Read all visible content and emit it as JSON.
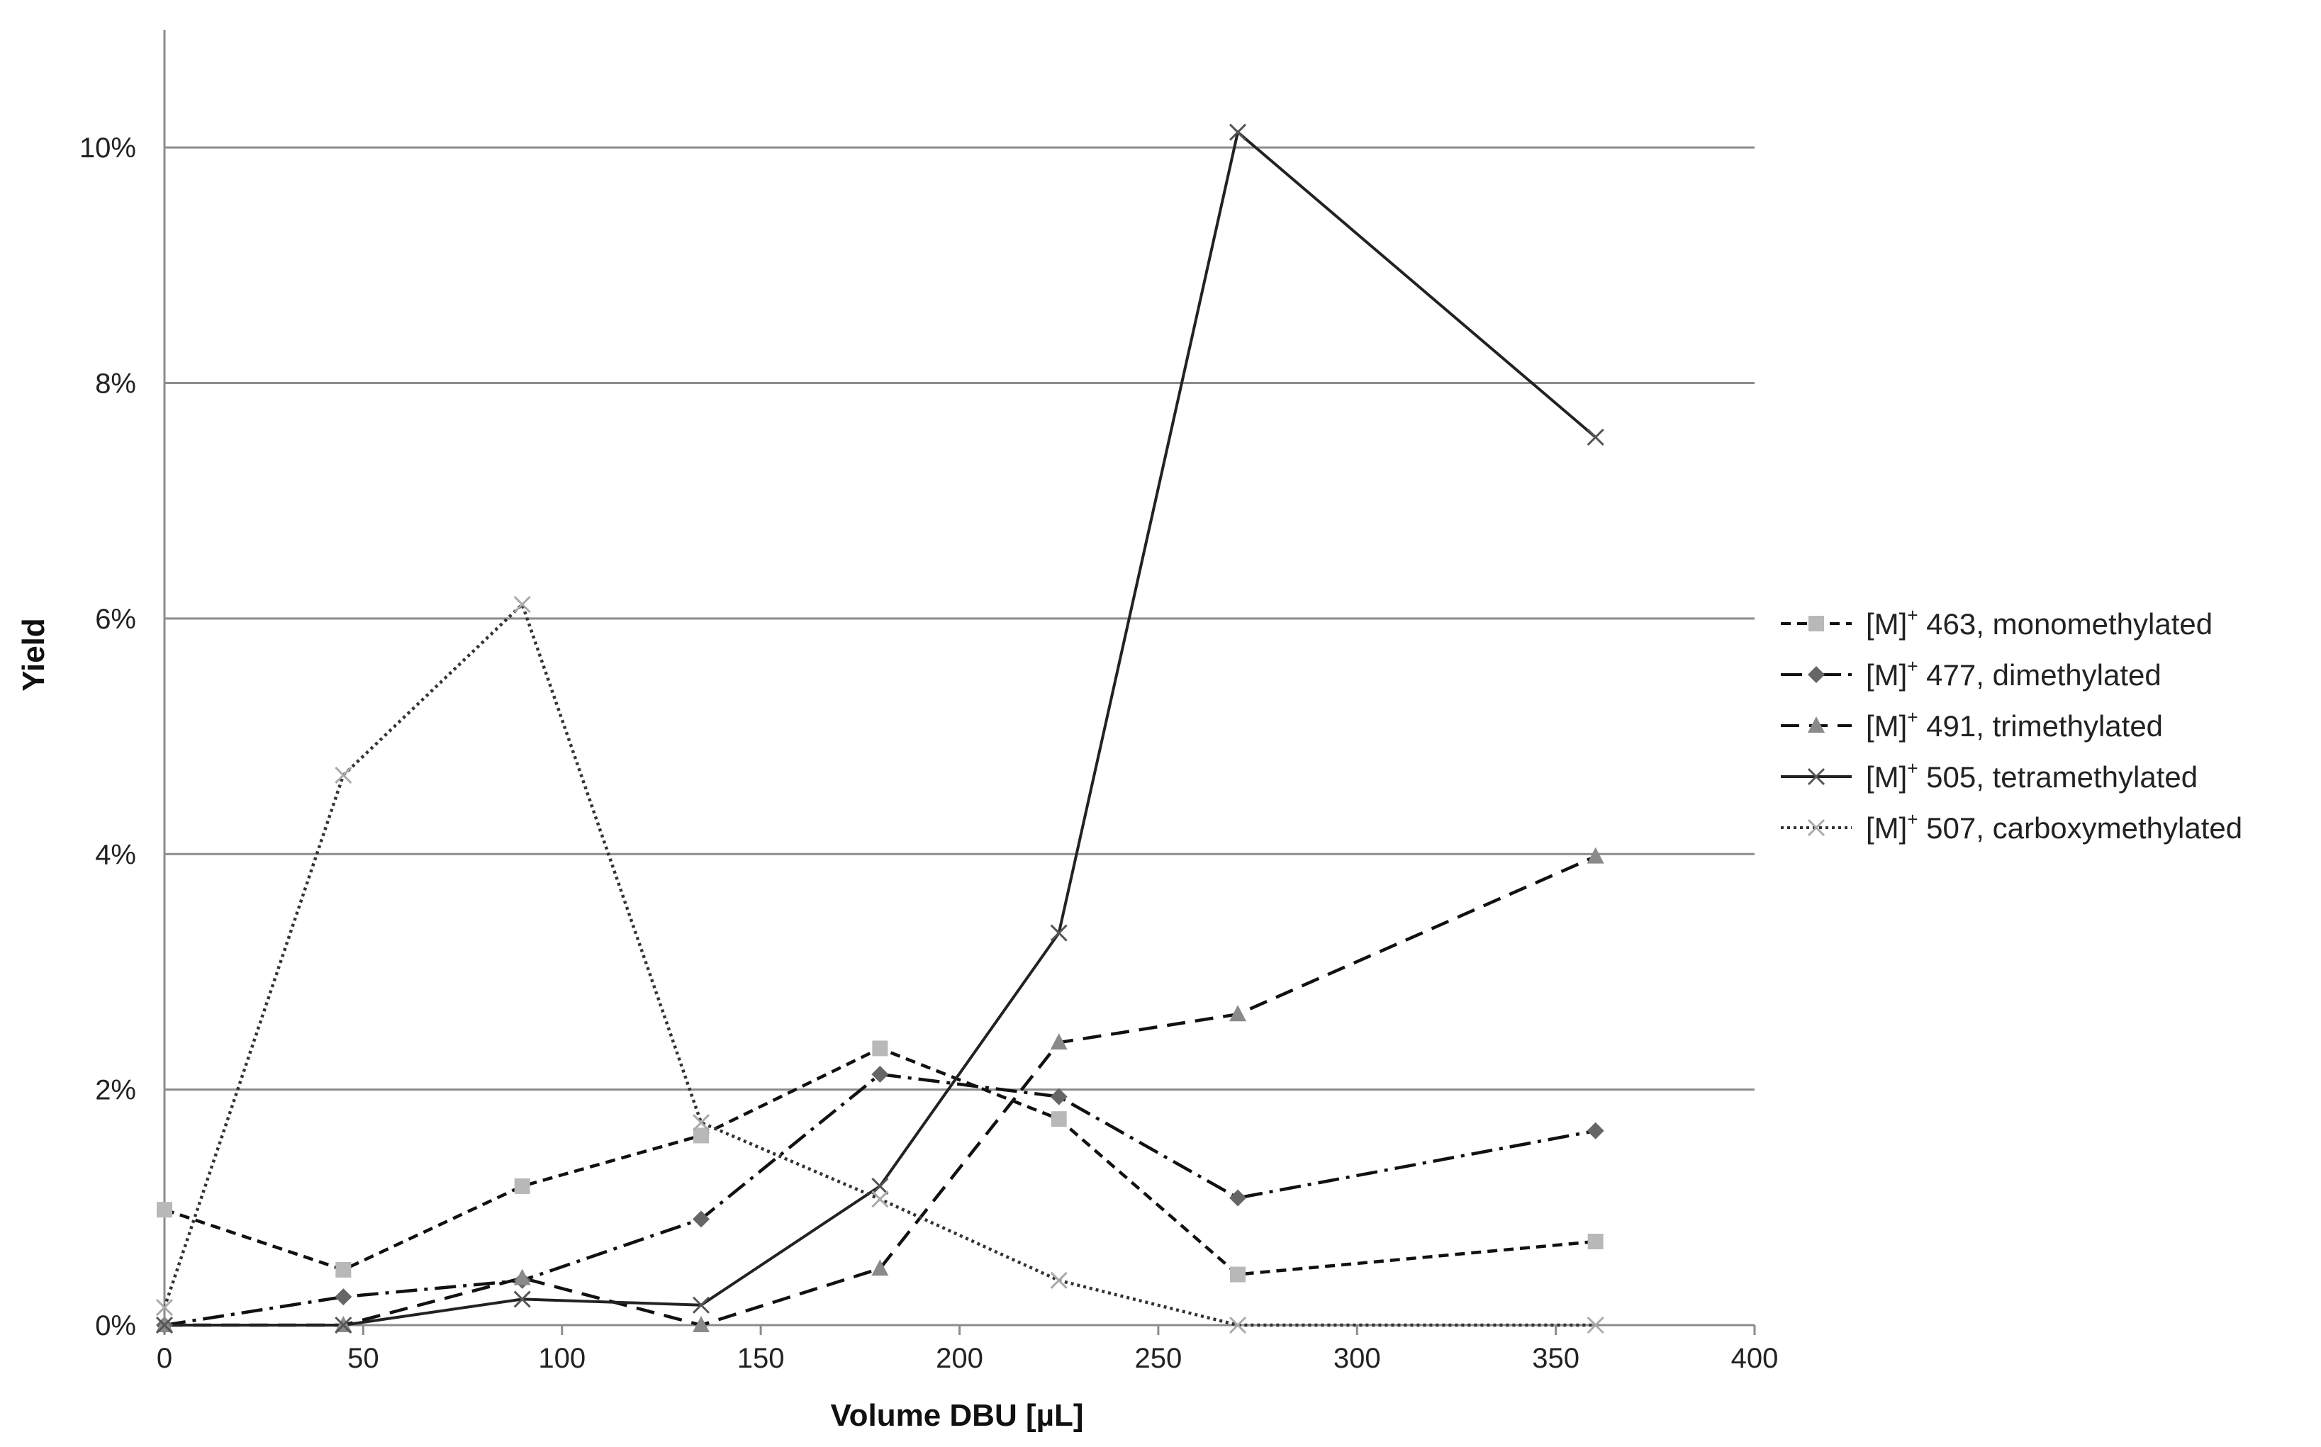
{
  "chart_data": {
    "type": "line",
    "title": "",
    "xlabel": "Volume DBU [µL]",
    "ylabel": "Yield",
    "xlim": [
      0,
      400
    ],
    "ylim": [
      0,
      0.11
    ],
    "x_ticks": [
      {
        "value": 0,
        "label": "0"
      },
      {
        "value": 50,
        "label": "50"
      },
      {
        "value": 100,
        "label": "100"
      },
      {
        "value": 150,
        "label": "150"
      },
      {
        "value": 200,
        "label": "200"
      },
      {
        "value": 250,
        "label": "250"
      },
      {
        "value": 300,
        "label": "300"
      },
      {
        "value": 350,
        "label": "350"
      },
      {
        "value": 400,
        "label": "400"
      }
    ],
    "y_ticks": [
      {
        "value": 0,
        "label": "0%"
      },
      {
        "value": 0.02,
        "label": "2%"
      },
      {
        "value": 0.04,
        "label": "4%"
      },
      {
        "value": 0.06,
        "label": "6%"
      },
      {
        "value": 0.08,
        "label": "8%"
      },
      {
        "value": 0.1,
        "label": "10%"
      }
    ],
    "grid": "horizontal",
    "legend_position": "right",
    "x": [
      0,
      45,
      90,
      135,
      180,
      225,
      270,
      360
    ],
    "series": [
      {
        "name_prefix": "[M]",
        "name_sup": "+",
        "name_suffix": " 463, monomethylated",
        "line_style": "short-dash",
        "marker": "square",
        "line_color": "#111111",
        "marker_color": "#b8b8b8",
        "values": [
          0.0098,
          0.0047,
          0.0118,
          0.0161,
          0.0235,
          0.0175,
          0.0043,
          0.0071
        ]
      },
      {
        "name_prefix": "[M]",
        "name_sup": "+",
        "name_suffix": " 477, dimethylated",
        "line_style": "dash-dot",
        "marker": "diamond",
        "line_color": "#111111",
        "marker_color": "#666666",
        "values": [
          0.0,
          0.0024,
          0.0038,
          0.009,
          0.0213,
          0.0194,
          0.0108,
          0.0165
        ]
      },
      {
        "name_prefix": "[M]",
        "name_sup": "+",
        "name_suffix": " 491, trimethylated",
        "line_style": "long-dash",
        "marker": "triangle",
        "line_color": "#111111",
        "marker_color": "#8a8a8a",
        "values": [
          0.0,
          0.0,
          0.004,
          0.0,
          0.0048,
          0.024,
          0.0264,
          0.0398
        ]
      },
      {
        "name_prefix": "[M]",
        "name_sup": "+",
        "name_suffix": " 505, tetramethylated",
        "line_style": "solid",
        "marker": "x",
        "line_color": "#222222",
        "marker_color": "#555555",
        "values": [
          0.0,
          0.0,
          0.0022,
          0.0017,
          0.0118,
          0.0333,
          0.1013,
          0.0754
        ]
      },
      {
        "name_prefix": "[M]",
        "name_sup": "+",
        "name_suffix": " 507, carboxymethylated",
        "line_style": "dotted",
        "marker": "x",
        "line_color": "#333333",
        "marker_color": "#aaaaaa",
        "values": [
          0.0015,
          0.0467,
          0.0612,
          0.0172,
          0.0107,
          0.0038,
          0.0,
          0.0
        ]
      }
    ]
  }
}
